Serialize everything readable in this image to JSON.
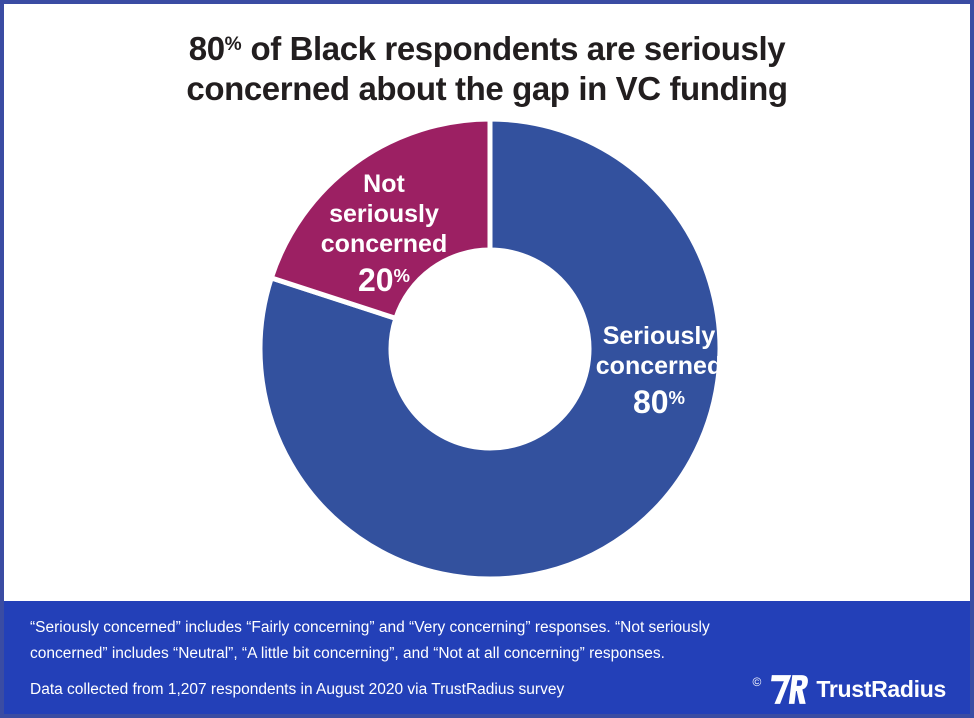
{
  "header": {
    "title_number": "80",
    "title_percent": "%",
    "title_line1_rest": " of Black respondents are seriously",
    "title_line2": "concerned about the gap in VC funding"
  },
  "chart_data": {
    "type": "pie",
    "variant": "donut",
    "title": "80% of Black respondents are seriously concerned about the gap in VC funding",
    "segments": [
      {
        "label": "Seriously concerned",
        "value": 80,
        "value_display": "80",
        "percent_sign": "%",
        "color": "#33519E"
      },
      {
        "label": "Not seriously concerned",
        "value": 20,
        "value_display": "20",
        "percent_sign": "%",
        "color": "#9C2063"
      }
    ],
    "start_angle_deg": -90,
    "direction": "clockwise",
    "inner_radius_ratio": 0.43,
    "separator_color": "#FFFFFF",
    "label_text_color": "#FFFFFF",
    "legend": "labels-on-slices"
  },
  "footer": {
    "background": "#2340B8",
    "note": "“Seriously concerned” includes “Fairly concerning” and “Very concerning” responses. “Not seriously concerned” includes “Neutral”, “A little bit concerning”, and “Not at all concerning” responses.",
    "source": "Data collected from 1,207 respondents in August 2020 via TrustRadius survey",
    "copyright_symbol": "©",
    "brand_name": "TrustRadius"
  }
}
